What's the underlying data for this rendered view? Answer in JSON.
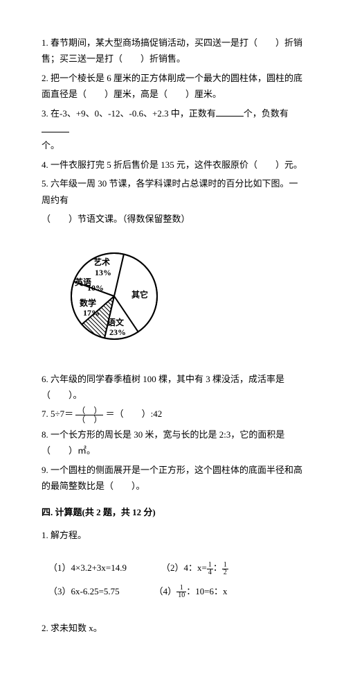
{
  "q1": "1. 春节期间，某大型商场搞促销活动，买四送一是打（　　）折销售；买三送一是打（　　）折销售。",
  "q2": "2. 把一个棱长是 6 厘米的正方体削成一个最大的圆柱体，圆柱的底面直径是（　　）厘米，高是（　　）厘米。",
  "q3_a": "3. 在-3、+9、0、-12、-0.6、+2.3 中，正数有",
  "q3_b": "个，负数有",
  "q3_c": "个。",
  "q4": "4. 一件衣服打完 5 折后售价是 135 元，这件衣服原价（　　）元。",
  "q5a": "5. 六年级一周 30 节课，各学科课时占总课时的百分比如下图。一周约有",
  "q5b": "（　　）节语文课。（得数保留整数）",
  "pie": {
    "slices": [
      {
        "label": "艺术",
        "pct": "13%",
        "angle_start": 257,
        "angle_end": 304,
        "fill": "#ffffff",
        "hatch": false
      },
      {
        "label": "英语",
        "pct": "10%",
        "angle_start": 221,
        "angle_end": 257,
        "fill": "#ffffff",
        "hatch": true
      },
      {
        "label": "数学",
        "pct": "17%",
        "angle_start": 160,
        "angle_end": 221,
        "fill": "#ffffff",
        "hatch": false
      },
      {
        "label": "语文",
        "pct": "23%",
        "angle_start": 77,
        "angle_end": 160,
        "fill": "#ffffff",
        "hatch": false
      },
      {
        "label": "其它",
        "pct": "",
        "angle_start": 304,
        "angle_end": 437,
        "fill": "#ffffff",
        "hatch": false
      }
    ],
    "other_label": "其它",
    "radius": 62,
    "stroke": "#000000",
    "stroke_width": 2,
    "label_fontsize": 12
  },
  "q6": "6. 六年级的同学春季植树 100 棵，其中有 3 棵没活，成活率是（　　）。",
  "q7_a": "7. 5÷7＝",
  "q7_b": "＝（　　）:42",
  "q8": "8. 一个长方形的周长是 30 米，宽与长的比是 2:3，它的面积是（　　）㎡。",
  "q9": "9. 一个圆柱的侧面展开是一个正方形，这个圆柱体的底面半径和高的最简整数比是（　　）。",
  "section4": "四. 计算题(共 2 题，共 12 分)",
  "sub1": "1. 解方程。",
  "eq1": "（1）4×3.2+3x=14.9",
  "eq2_a": "（2）4：x=",
  "eq2_b": "：",
  "eq3": "（3）6x-6.25=5.75",
  "eq4_a": "（4）",
  "eq4_b": "：10=6：x",
  "sub2": "2. 求未知数 x。",
  "frac_1_4": {
    "n": "1",
    "d": "4"
  },
  "frac_1_2": {
    "n": "1",
    "d": "2"
  },
  "frac_1_10": {
    "n": "1",
    "d": "10"
  },
  "paren": {
    "top": "（　）",
    "bot": "（　）"
  }
}
